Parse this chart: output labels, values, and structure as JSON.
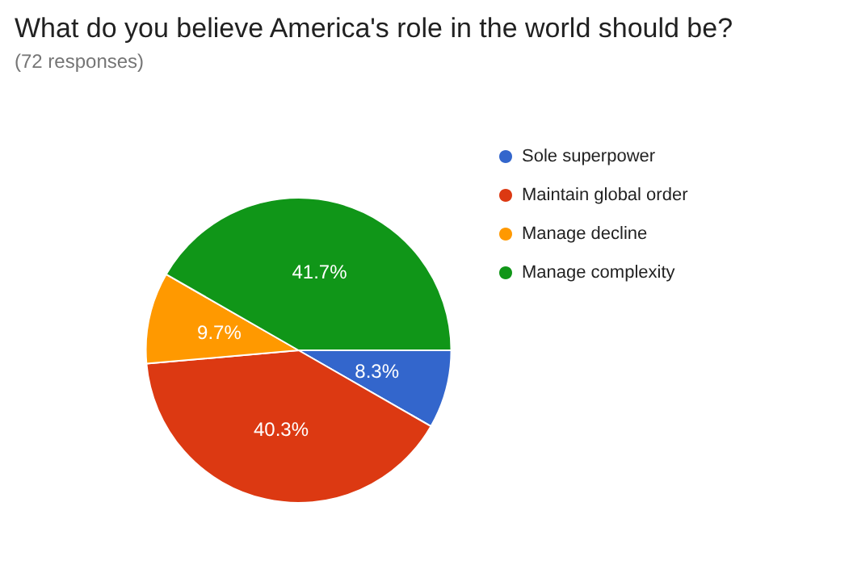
{
  "chart_data": {
    "type": "pie",
    "title": "What do you believe America's role in the world should be?",
    "subtitle": "(72 responses)",
    "categories": [
      "Sole superpower",
      "Maintain global order",
      "Manage decline",
      "Manage complexity"
    ],
    "values": [
      8.3,
      40.3,
      9.7,
      41.7
    ],
    "value_labels": [
      "8.3%",
      "40.3%",
      "9.7%",
      "41.7%"
    ],
    "colors": [
      "#3366cc",
      "#dc3912",
      "#ff9900",
      "#109618"
    ],
    "legend": "right"
  }
}
